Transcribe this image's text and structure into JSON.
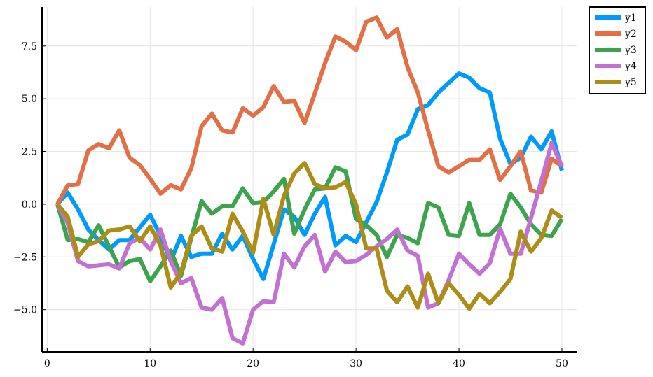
{
  "chart_data": {
    "type": "line",
    "title": "",
    "xlabel": "",
    "ylabel": "",
    "xlim": [
      -0.5,
      51.5
    ],
    "ylim": [
      -7.0,
      9.35
    ],
    "xticks": [
      0,
      10,
      20,
      30,
      40,
      50
    ],
    "xtick_labels": [
      "0",
      "10",
      "20",
      "30",
      "40",
      "50"
    ],
    "yticks": [
      -5.0,
      -2.5,
      0.0,
      2.5,
      5.0,
      7.5
    ],
    "ytick_labels": [
      "−5.0",
      "−2.5",
      "0.0",
      "2.5",
      "5.0",
      "7.5"
    ],
    "grid": true,
    "legend_position": "top-right",
    "x": [
      1,
      2,
      3,
      4,
      5,
      6,
      7,
      8,
      9,
      10,
      11,
      12,
      13,
      14,
      15,
      16,
      17,
      18,
      19,
      20,
      21,
      22,
      23,
      24,
      25,
      26,
      27,
      28,
      29,
      30,
      31,
      32,
      33,
      34,
      35,
      36,
      37,
      38,
      39,
      40,
      41,
      42,
      43,
      44,
      45,
      46,
      47,
      48,
      49,
      50
    ],
    "series": [
      {
        "name": "y1",
        "color": "#009af9",
        "values": [
          0.0,
          0.55,
          -0.25,
          -1.2,
          -1.7,
          -2.15,
          -1.7,
          -1.7,
          -1.1,
          -0.5,
          -1.5,
          -2.7,
          -1.5,
          -2.5,
          -2.35,
          -2.35,
          -1.4,
          -2.15,
          -1.5,
          -2.6,
          -3.55,
          -1.9,
          -0.25,
          -0.6,
          -1.45,
          -0.45,
          0.35,
          -1.95,
          -1.5,
          -1.8,
          -0.85,
          0.1,
          1.5,
          3.05,
          3.3,
          4.5,
          4.7,
          5.3,
          5.75,
          6.2,
          6.0,
          5.5,
          5.3,
          3.1,
          1.9,
          2.2,
          3.2,
          2.6,
          3.45,
          1.6
        ]
      },
      {
        "name": "y2",
        "color": "#e26f46",
        "values": [
          0.0,
          0.9,
          0.95,
          2.55,
          2.85,
          2.65,
          3.5,
          2.2,
          1.85,
          1.2,
          0.5,
          0.9,
          0.7,
          1.7,
          3.7,
          4.3,
          3.5,
          3.4,
          4.55,
          4.2,
          4.6,
          5.6,
          4.85,
          4.9,
          3.85,
          5.25,
          6.7,
          7.95,
          7.7,
          7.3,
          8.65,
          8.85,
          7.9,
          8.3,
          6.5,
          5.3,
          3.5,
          1.8,
          1.5,
          1.8,
          2.1,
          2.1,
          2.6,
          1.15,
          1.8,
          2.5,
          0.65,
          0.55,
          2.15,
          1.8
        ]
      },
      {
        "name": "y3",
        "color": "#3da44d",
        "values": [
          0.0,
          -1.7,
          -1.65,
          -1.8,
          -1.0,
          -2.0,
          -3.0,
          -2.7,
          -2.6,
          -3.65,
          -2.95,
          -2.2,
          -3.4,
          -1.6,
          0.15,
          -0.45,
          -0.1,
          -0.1,
          0.75,
          0.05,
          0.1,
          0.6,
          1.2,
          -1.4,
          -0.25,
          0.7,
          0.75,
          1.75,
          1.55,
          -0.7,
          -1.0,
          -1.45,
          -2.5,
          -1.45,
          -1.6,
          -1.85,
          0.05,
          -0.15,
          -1.45,
          -1.5,
          0.05,
          -1.45,
          -1.45,
          -0.95,
          0.5,
          -0.15,
          -0.95,
          -1.45,
          -1.5,
          -0.7
        ]
      },
      {
        "name": "y4",
        "color": "#c271d2",
        "values": [
          0.0,
          -0.9,
          -2.7,
          -2.95,
          -2.9,
          -2.85,
          -3.05,
          -1.85,
          -1.6,
          -2.15,
          -1.2,
          -2.7,
          -3.75,
          -3.5,
          -4.9,
          -5.0,
          -4.45,
          -6.35,
          -6.6,
          -5.0,
          -4.6,
          -4.65,
          -2.35,
          -3.0,
          -2.0,
          -1.45,
          -3.2,
          -2.25,
          -2.75,
          -2.7,
          -2.4,
          -2.0,
          -1.65,
          -1.2,
          -2.2,
          -2.45,
          -4.9,
          -4.7,
          -3.6,
          -2.35,
          -2.85,
          -3.3,
          -2.8,
          -1.15,
          -2.35,
          -2.35,
          -0.65,
          1.1,
          2.9,
          1.8
        ]
      },
      {
        "name": "y5",
        "color": "#ac8d18",
        "values": [
          0.0,
          -0.6,
          -2.5,
          -1.9,
          -1.75,
          -1.25,
          -1.2,
          -1.05,
          -1.75,
          -1.05,
          -1.95,
          -3.95,
          -3.25,
          -1.5,
          -1.05,
          -2.1,
          -2.25,
          -0.45,
          -1.3,
          -2.3,
          0.25,
          -1.45,
          0.4,
          1.45,
          1.95,
          0.95,
          0.75,
          0.8,
          1.05,
          0.0,
          -2.1,
          -2.1,
          -4.1,
          -4.65,
          -3.9,
          -4.9,
          -3.3,
          -4.7,
          -3.75,
          -4.3,
          -4.95,
          -4.25,
          -4.7,
          -4.15,
          -3.55,
          -1.3,
          -2.25,
          -1.6,
          -0.3,
          -0.65
        ]
      }
    ]
  }
}
